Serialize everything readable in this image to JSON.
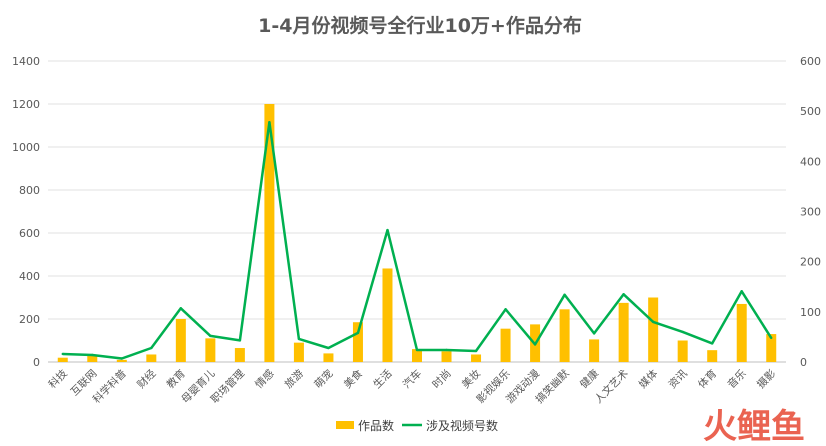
{
  "chart_data": {
    "type": "bar",
    "title": "1-4月份视频号全行业10万+作品分布",
    "categories": [
      "科技",
      "互联网",
      "科学科普",
      "财经",
      "教育",
      "母婴育儿",
      "职场管理",
      "情感",
      "旅游",
      "萌宠",
      "美食",
      "生活",
      "汽车",
      "时尚",
      "美妆",
      "影视娱乐",
      "游戏动漫",
      "搞笑幽默",
      "健康",
      "人文艺术",
      "媒体",
      "资讯",
      "体育",
      "音乐",
      "摄影"
    ],
    "series": [
      {
        "name": "作品数",
        "type": "bar",
        "axis": "left",
        "color": "#FFC000",
        "values": [
          20,
          30,
          10,
          35,
          200,
          110,
          65,
          1200,
          90,
          40,
          185,
          435,
          60,
          50,
          35,
          155,
          175,
          245,
          105,
          275,
          300,
          100,
          55,
          270,
          130
        ]
      },
      {
        "name": "涉及视频号数",
        "type": "line",
        "axis": "right",
        "color": "#00B050",
        "values": [
          16,
          14,
          7,
          28,
          107,
          52,
          43,
          478,
          46,
          28,
          58,
          263,
          24,
          24,
          22,
          105,
          35,
          134,
          57,
          135,
          80,
          60,
          37,
          141,
          48
        ]
      }
    ],
    "ylim_left": [
      0,
      1400
    ],
    "yticks_left": [
      0,
      200,
      400,
      600,
      800,
      1000,
      1200,
      1400
    ],
    "ylim_right": [
      0,
      600
    ],
    "yticks_right": [
      0,
      100,
      200,
      300,
      400,
      500,
      600
    ],
    "grid": true,
    "legend": "bottom"
  },
  "watermark": {
    "text": "火鲤鱼"
  }
}
